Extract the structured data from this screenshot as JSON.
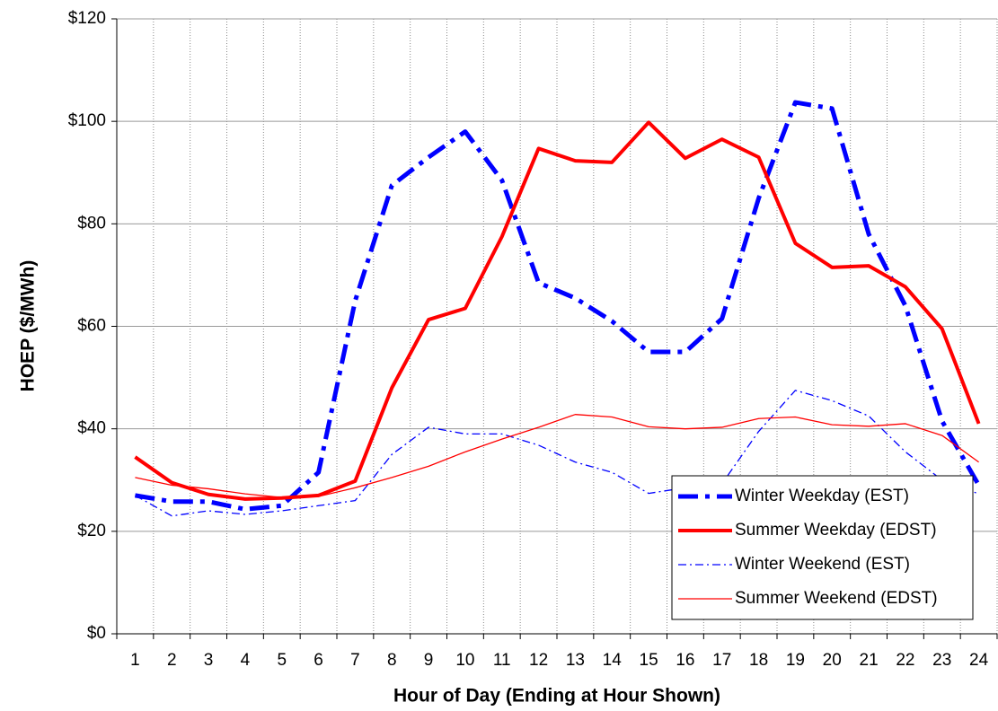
{
  "chart_data": {
    "type": "line",
    "x_label": "Hour of Day (Ending at Hour Shown)",
    "y_label": "HOEP ($/MWh)",
    "categories": [
      "1",
      "2",
      "3",
      "4",
      "5",
      "6",
      "7",
      "8",
      "9",
      "10",
      "11",
      "12",
      "13",
      "14",
      "15",
      "16",
      "17",
      "18",
      "19",
      "20",
      "21",
      "22",
      "23",
      "24"
    ],
    "series": [
      {
        "name": "Winter Weekday (EST)",
        "color": "#0000ff",
        "width": 5,
        "dash": "dash-dot",
        "values": [
          27,
          25.8,
          25.8,
          24.3,
          25,
          31.5,
          65,
          87.5,
          93,
          98,
          88.5,
          68.5,
          65.5,
          61,
          55,
          55,
          61.5,
          85,
          103.7,
          102.5,
          78,
          64,
          41.5,
          29
        ]
      },
      {
        "name": "Summer Weekday (EDST)",
        "color": "#ff0000",
        "width": 4,
        "dash": "solid",
        "values": [
          34.5,
          29.5,
          27.2,
          26.3,
          26.5,
          27,
          29.8,
          48,
          61.3,
          63.5,
          77.5,
          94.7,
          92.3,
          92,
          99.8,
          92.8,
          96.5,
          93,
          76.2,
          71.5,
          71.8,
          67.7,
          59.5,
          41
        ]
      },
      {
        "name": "Winter Weekend (EST)",
        "color": "#0000ff",
        "width": 1.3,
        "dash": "dash-dot",
        "values": [
          27,
          23,
          24,
          23.3,
          24,
          25,
          26,
          35,
          40.3,
          39,
          39,
          36.8,
          33.5,
          31.5,
          27.4,
          28.5,
          29.3,
          39.5,
          47.5,
          45.5,
          42.5,
          35.5,
          30,
          27.3
        ]
      },
      {
        "name": "Summer Weekend (EDST)",
        "color": "#ff0000",
        "width": 1.3,
        "dash": "solid",
        "values": [
          30.5,
          29,
          28.3,
          27.3,
          26.6,
          26.8,
          28.5,
          30.5,
          32.7,
          35.5,
          38,
          40.3,
          42.8,
          42.3,
          40.4,
          40,
          40.3,
          42,
          42.3,
          40.8,
          40.5,
          41,
          38.7,
          33.5
        ]
      }
    ],
    "ylim": [
      0,
      120
    ],
    "yticks": [
      {
        "value": 0,
        "label": "$0"
      },
      {
        "value": 20,
        "label": "$20"
      },
      {
        "value": 40,
        "label": "$40"
      },
      {
        "value": 60,
        "label": "$60"
      },
      {
        "value": 80,
        "label": "$80"
      },
      {
        "value": 100,
        "label": "$100"
      },
      {
        "value": 120,
        "label": "$120"
      }
    ],
    "grid": true,
    "legend": "lower right"
  }
}
